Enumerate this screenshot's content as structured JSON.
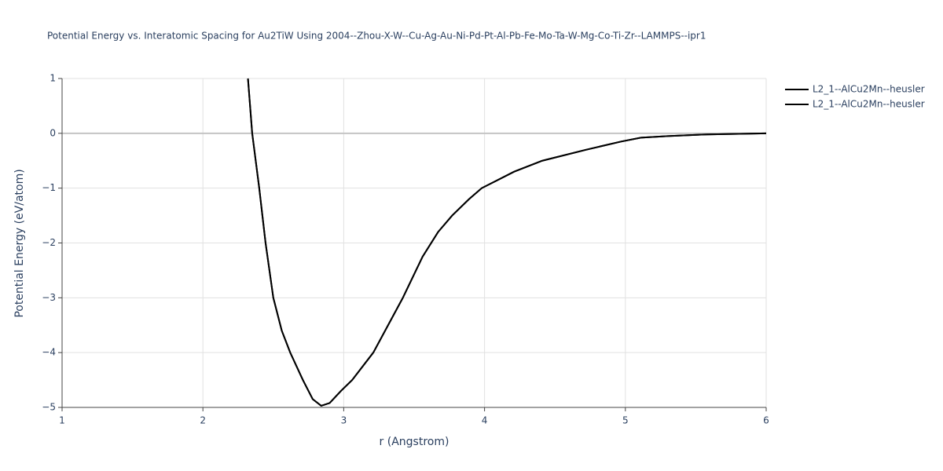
{
  "chart_data": {
    "type": "line",
    "title": "Potential Energy vs. Interatomic Spacing for Au2TiW Using 2004--Zhou-X-W--Cu-Ag-Au-Ni-Pd-Pt-Al-Pb-Fe-Mo-Ta-W-Mg-Co-Ti-Zr--LAMMPS--ipr1",
    "x_label": "r (Angstrom)",
    "y_label": "Potential Energy (eV/atom)",
    "xlim": [
      1,
      6
    ],
    "ylim": [
      -5,
      1
    ],
    "xticks": [
      1,
      2,
      3,
      4,
      5,
      6
    ],
    "yticks": [
      {
        "value": -5,
        "label": "−5"
      },
      {
        "value": -4,
        "label": "−4"
      },
      {
        "value": -3,
        "label": "−3"
      },
      {
        "value": -2,
        "label": "−2"
      },
      {
        "value": -1,
        "label": "−1"
      },
      0,
      1
    ],
    "grid": true,
    "legend": "top-right",
    "x": [
      2.32,
      2.35,
      2.4,
      2.445,
      2.5,
      2.56,
      2.62,
      2.71,
      2.78,
      2.84,
      2.9,
      2.98,
      3.06,
      3.21,
      3.42,
      3.56,
      3.67,
      3.77,
      3.89,
      3.98,
      4.21,
      4.41,
      4.72,
      4.97,
      5.11,
      5.3,
      5.58,
      6.0
    ],
    "series": [
      {
        "name": "L2_1--AlCu2Mn--heusler",
        "color": "#000000",
        "values": [
          1.0,
          0.0,
          -1.0,
          -2.0,
          -3.0,
          -3.6,
          -4.0,
          -4.5,
          -4.85,
          -4.97,
          -4.92,
          -4.7,
          -4.5,
          -4.0,
          -3.0,
          -2.25,
          -1.8,
          -1.5,
          -1.2,
          -1.0,
          -0.7,
          -0.5,
          -0.3,
          -0.15,
          -0.08,
          -0.05,
          -0.02,
          0.0
        ]
      },
      {
        "name": "L2_1--AlCu2Mn--heusler",
        "color": "#000000",
        "values": [
          1.0,
          0.0,
          -1.0,
          -2.0,
          -3.0,
          -3.6,
          -4.0,
          -4.5,
          -4.85,
          -4.97,
          -4.92,
          -4.7,
          -4.5,
          -4.0,
          -3.0,
          -2.25,
          -1.8,
          -1.5,
          -1.2,
          -1.0,
          -0.7,
          -0.5,
          -0.3,
          -0.15,
          -0.08,
          -0.05,
          -0.02,
          0.0
        ]
      }
    ]
  }
}
